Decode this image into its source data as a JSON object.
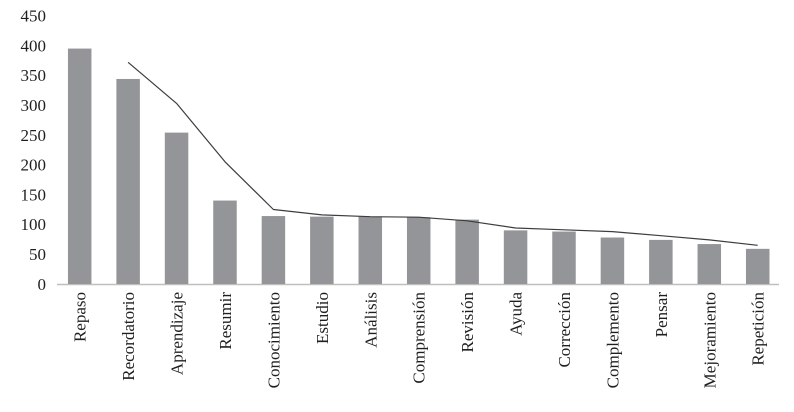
{
  "page": {
    "background_color": "#ffffff",
    "text_color": "#1f1f1f"
  },
  "chart_data": {
    "type": "bar",
    "title": "",
    "xlabel": "",
    "ylabel": "",
    "categories": [
      "Repaso",
      "Recordatorio",
      "Aprendizaje",
      "Resumir",
      "Conocimiento",
      "Estudio",
      "Análisis",
      "Comprensión",
      "Revisión",
      "Ayuda",
      "Corrección",
      "Complemento",
      "Pensar",
      "Mejoramiento",
      "Repetición"
    ],
    "series": [
      {
        "name": "bars",
        "type": "bar",
        "color": "#939598",
        "values": [
          395,
          344,
          254,
          140,
          114,
          113,
          113,
          112,
          108,
          90,
          88,
          78,
          74,
          67,
          59
        ]
      },
      {
        "name": "line",
        "type": "line",
        "color": "#3d3d3d",
        "start_index": 1,
        "values": [
          372,
          303,
          205,
          125,
          116,
          113,
          112,
          106,
          94,
          91,
          88,
          81,
          74,
          65
        ]
      }
    ],
    "ylim": [
      0,
      450
    ],
    "ytick_step": 50,
    "yticks": [
      0,
      50,
      100,
      150,
      200,
      250,
      300,
      350,
      400,
      450
    ],
    "grid": false,
    "legend_position": "none",
    "x_labels_rotation_degrees": -90,
    "axis_color": "#bfbfbf",
    "tick_text_color": "#1f1f1f"
  }
}
